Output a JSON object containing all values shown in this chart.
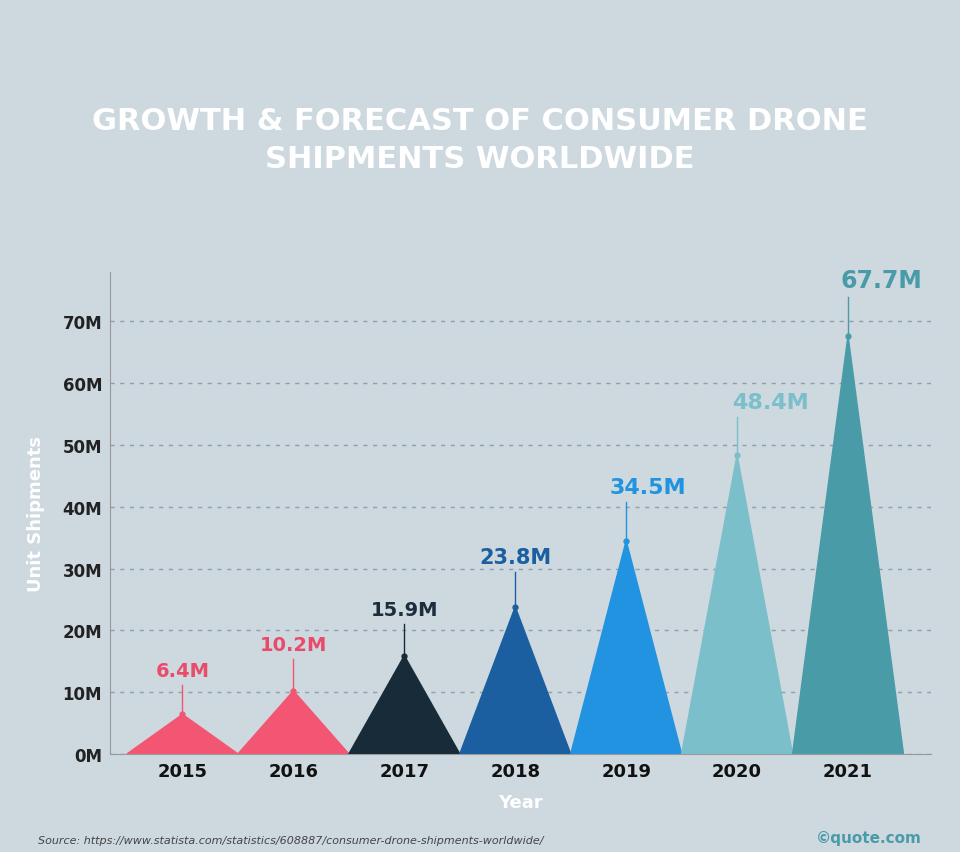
{
  "years": [
    2015,
    2016,
    2017,
    2018,
    2019,
    2020,
    2021
  ],
  "values": [
    6.4,
    10.2,
    15.9,
    23.8,
    34.5,
    48.4,
    67.7
  ],
  "labels": [
    "6.4M",
    "10.2M",
    "15.9M",
    "23.8M",
    "34.5M",
    "48.4M",
    "67.7M"
  ],
  "colors": [
    "#F25672",
    "#F25672",
    "#172B38",
    "#1B5FA0",
    "#2193E0",
    "#7BBFCB",
    "#4A9BA8"
  ],
  "label_colors": [
    "#E84C6A",
    "#E84C6A",
    "#1A2E3E",
    "#1B5FA0",
    "#2193E0",
    "#7BBFCB",
    "#4A9BA8"
  ],
  "title_line1": "GROWTH & FORECAST OF CONSUMER DRONE",
  "title_line2": "SHIPMENTS WORLDWIDE",
  "title_bg_color": "#1B3B8A",
  "title_text_color": "#FFFFFF",
  "bg_color": "#CDD8DF",
  "plot_bg_color": "#CDD8DF",
  "ylabel": "Unit Shipments",
  "ylabel_bg_color": "#1B3B8A",
  "ylabel_text_color": "#FFFFFF",
  "xlabel": "Year",
  "xlabel_bg_color": "#1B3B8A",
  "xlabel_text_color": "#FFFFFF",
  "yticks": [
    0,
    10,
    20,
    30,
    40,
    50,
    60,
    70
  ],
  "ytick_labels": [
    "0M",
    "10M",
    "20M",
    "30M",
    "40M",
    "50M",
    "60M",
    "70M"
  ],
  "ymax": 78,
  "source_text": "Source: https://www.statista.com/statistics/608887/consumer-drone-shipments-worldwide/",
  "watermark": "©quote.com"
}
